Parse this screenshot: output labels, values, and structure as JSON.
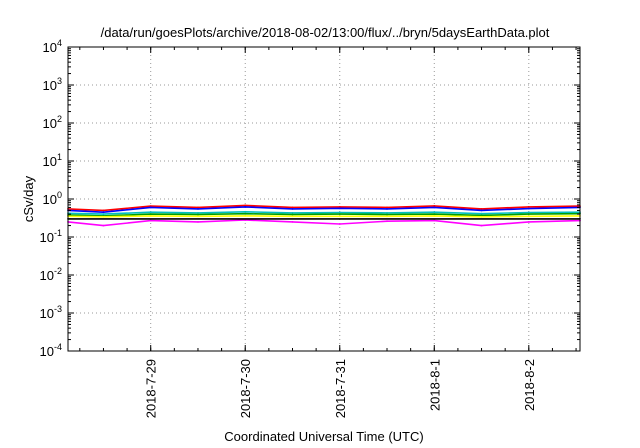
{
  "chart_data": {
    "type": "line",
    "title": "/data/run/goesPlots/archive/2018-08-02/13:00/flux/../bryn/5daysEarthData.plot",
    "xlabel": "Coordinated Universal Time (UTC)",
    "ylabel": "cSv/day",
    "yscale": "log",
    "ylim": [
      0.0001,
      10000
    ],
    "xlim": [
      "2018-07-28T03:00",
      "2018-08-02T13:00"
    ],
    "grid": true,
    "legend": "none",
    "x_ticks": [
      {
        "label": "2018-7-29",
        "value": "2018-07-29T00:00"
      },
      {
        "label": "2018-7-30",
        "value": "2018-07-30T00:00"
      },
      {
        "label": "2018-7-31",
        "value": "2018-07-31T00:00"
      },
      {
        "label": "2018-8-1",
        "value": "2018-08-01T00:00"
      },
      {
        "label": "2018-8-2",
        "value": "2018-08-02T00:00"
      }
    ],
    "y_ticks": [
      {
        "base": "10",
        "exp": "4",
        "value": 10000
      },
      {
        "base": "10",
        "exp": "3",
        "value": 1000
      },
      {
        "base": "10",
        "exp": "2",
        "value": 100
      },
      {
        "base": "10",
        "exp": "1",
        "value": 10
      },
      {
        "base": "10",
        "exp": "0",
        "value": 1
      },
      {
        "base": "10",
        "exp": "-1",
        "value": 0.1
      },
      {
        "base": "10",
        "exp": "-2",
        "value": 0.01
      },
      {
        "base": "10",
        "exp": "-3",
        "value": 0.001
      },
      {
        "base": "10",
        "exp": "-4",
        "value": 0.0001
      }
    ],
    "series": [
      {
        "color": "#ff0000",
        "x": [
          "2018-07-28T03:00",
          "2018-07-28T12:00",
          "2018-07-29T00:00",
          "2018-07-29T12:00",
          "2018-07-30T00:00",
          "2018-07-30T12:00",
          "2018-07-31T00:00",
          "2018-07-31T12:00",
          "2018-08-01T00:00",
          "2018-08-01T12:00",
          "2018-08-02T00:00",
          "2018-08-02T13:00"
        ],
        "y": [
          0.55,
          0.5,
          0.65,
          0.6,
          0.68,
          0.6,
          0.62,
          0.6,
          0.66,
          0.55,
          0.62,
          0.65
        ]
      },
      {
        "color": "#0000ff",
        "x": [
          "2018-07-28T03:00",
          "2018-07-28T12:00",
          "2018-07-29T00:00",
          "2018-07-29T12:00",
          "2018-07-30T00:00",
          "2018-07-30T12:00",
          "2018-07-31T00:00",
          "2018-07-31T12:00",
          "2018-08-01T00:00",
          "2018-08-01T12:00",
          "2018-08-02T00:00",
          "2018-08-02T13:00"
        ],
        "y": [
          0.5,
          0.45,
          0.6,
          0.55,
          0.62,
          0.55,
          0.57,
          0.55,
          0.6,
          0.5,
          0.56,
          0.6
        ]
      },
      {
        "color": "#00c0c0",
        "x": [
          "2018-07-28T03:00",
          "2018-07-28T12:00",
          "2018-07-29T00:00",
          "2018-07-29T12:00",
          "2018-07-30T00:00",
          "2018-07-30T12:00",
          "2018-07-31T00:00",
          "2018-07-31T12:00",
          "2018-08-01T00:00",
          "2018-08-01T12:00",
          "2018-08-02T00:00",
          "2018-08-02T13:00"
        ],
        "y": [
          0.42,
          0.4,
          0.45,
          0.43,
          0.46,
          0.43,
          0.44,
          0.43,
          0.45,
          0.41,
          0.44,
          0.45
        ]
      },
      {
        "color": "#00a000",
        "x": [
          "2018-07-28T03:00",
          "2018-07-28T12:00",
          "2018-07-29T00:00",
          "2018-07-29T12:00",
          "2018-07-30T00:00",
          "2018-07-30T12:00",
          "2018-07-31T00:00",
          "2018-07-31T12:00",
          "2018-08-01T00:00",
          "2018-08-01T12:00",
          "2018-08-02T00:00",
          "2018-08-02T13:00"
        ],
        "y": [
          0.38,
          0.36,
          0.4,
          0.39,
          0.41,
          0.39,
          0.4,
          0.39,
          0.4,
          0.37,
          0.4,
          0.41
        ]
      },
      {
        "color": "#ffff00",
        "x": [
          "2018-07-28T03:00",
          "2018-07-28T12:00",
          "2018-07-29T00:00",
          "2018-07-29T12:00",
          "2018-07-30T00:00",
          "2018-07-30T12:00",
          "2018-07-31T00:00",
          "2018-07-31T12:00",
          "2018-08-01T00:00",
          "2018-08-01T12:00",
          "2018-08-02T00:00",
          "2018-08-02T13:00"
        ],
        "y": [
          0.35,
          0.34,
          0.36,
          0.35,
          0.36,
          0.35,
          0.35,
          0.35,
          0.36,
          0.34,
          0.35,
          0.36
        ]
      },
      {
        "color": "#ff00ff",
        "x": [
          "2018-07-28T03:00",
          "2018-07-28T12:00",
          "2018-07-29T00:00",
          "2018-07-29T12:00",
          "2018-07-30T00:00",
          "2018-07-30T12:00",
          "2018-07-31T00:00",
          "2018-07-31T12:00",
          "2018-08-01T00:00",
          "2018-08-01T12:00",
          "2018-08-02T00:00",
          "2018-08-02T13:00"
        ],
        "y": [
          0.25,
          0.2,
          0.27,
          0.25,
          0.28,
          0.25,
          0.22,
          0.26,
          0.27,
          0.2,
          0.25,
          0.27
        ]
      },
      {
        "color": "#000000",
        "x": [
          "2018-07-28T03:00",
          "2018-08-02T13:00"
        ],
        "y": [
          0.3,
          0.3
        ]
      }
    ]
  }
}
